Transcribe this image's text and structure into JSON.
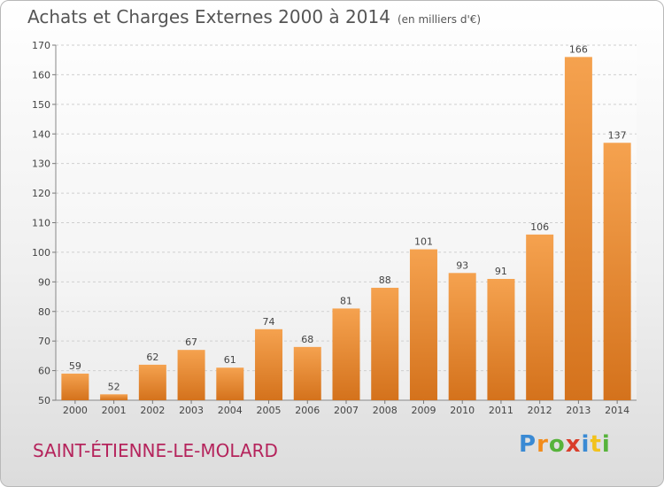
{
  "chart_data": {
    "type": "bar",
    "title": "Achats et Charges Externes 2000 à 2014",
    "subtitle": "(en milliers d'€)",
    "categories": [
      "2000",
      "2001",
      "2002",
      "2003",
      "2004",
      "2005",
      "2006",
      "2007",
      "2008",
      "2009",
      "2010",
      "2011",
      "2012",
      "2013",
      "2014"
    ],
    "values": [
      59,
      52,
      62,
      67,
      61,
      74,
      68,
      81,
      88,
      101,
      93,
      91,
      106,
      166,
      137
    ],
    "ylim": [
      50,
      170
    ],
    "yticks": [
      50,
      60,
      70,
      80,
      90,
      100,
      110,
      120,
      130,
      140,
      150,
      160,
      170
    ],
    "xlabel": "",
    "ylabel": "",
    "grid": true,
    "bar_color_top": "#f5a24f",
    "bar_color_bottom": "#d4721c"
  },
  "footer": {
    "location": "SAINT-ÉTIENNE-LE-MOLARD",
    "location_color": "#b5245c",
    "brand_letters": [
      "P",
      "r",
      "o",
      "x",
      "i",
      "t",
      "i"
    ],
    "brand_colors": [
      "#3a8ad4",
      "#f28c1c",
      "#57b33b",
      "#d93d2a",
      "#3a8ad4",
      "#f2c21c",
      "#57b33b"
    ]
  }
}
